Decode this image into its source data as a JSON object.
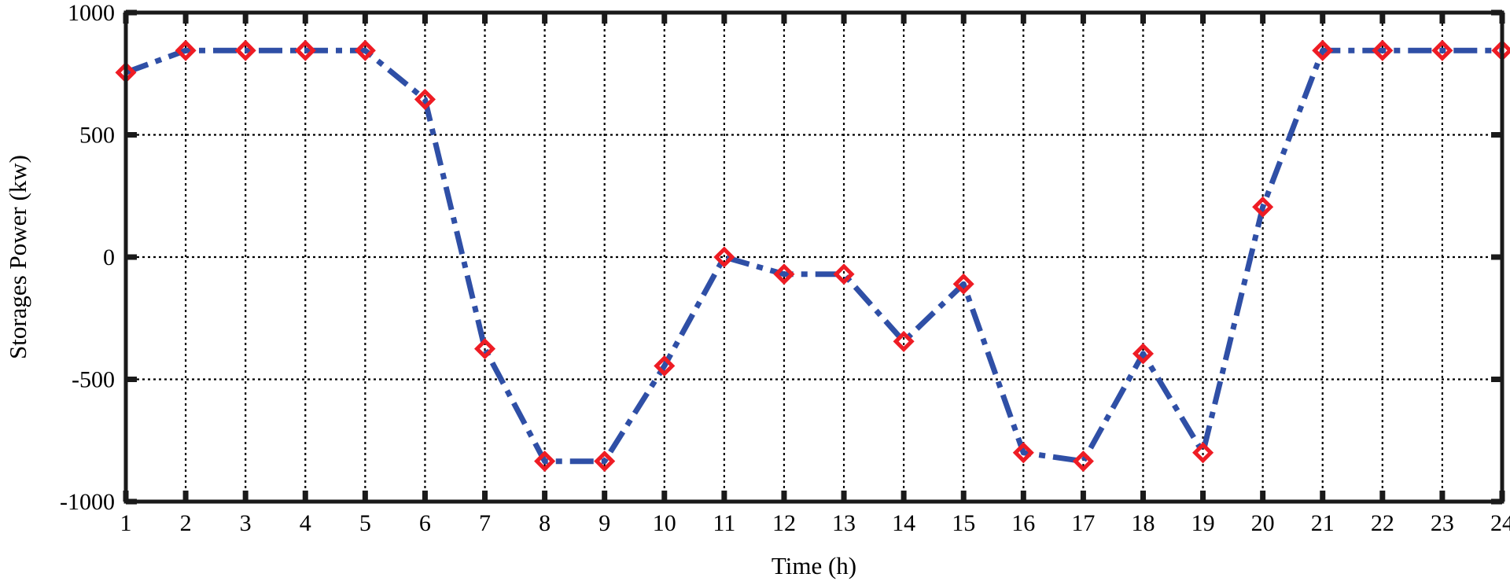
{
  "chart_data": {
    "type": "line",
    "title": "",
    "xlabel": "Time (h)",
    "ylabel": "Storages Power (kw)",
    "xlim": [
      1,
      24
    ],
    "ylim": [
      -1000,
      1000
    ],
    "x_ticks": [
      1,
      2,
      3,
      4,
      5,
      6,
      7,
      8,
      9,
      10,
      11,
      12,
      13,
      14,
      15,
      16,
      17,
      18,
      19,
      20,
      21,
      22,
      23,
      24
    ],
    "y_ticks": [
      -1000,
      -500,
      0,
      500,
      1000
    ],
    "grid": true,
    "series": [
      {
        "name": "Storages Power",
        "line_color": "#2f4fa6",
        "line_style": "dash-dot",
        "marker": "diamond",
        "marker_color": "#ee1c24",
        "x": [
          1,
          2,
          3,
          4,
          5,
          6,
          7,
          8,
          9,
          10,
          11,
          12,
          13,
          14,
          15,
          16,
          17,
          18,
          19,
          20,
          21,
          22,
          23,
          24
        ],
        "values": [
          755,
          845,
          845,
          845,
          845,
          645,
          -375,
          -835,
          -835,
          -445,
          0,
          -70,
          -70,
          -345,
          -110,
          -800,
          -835,
          -395,
          -800,
          205,
          845,
          845,
          845,
          845
        ]
      }
    ]
  }
}
